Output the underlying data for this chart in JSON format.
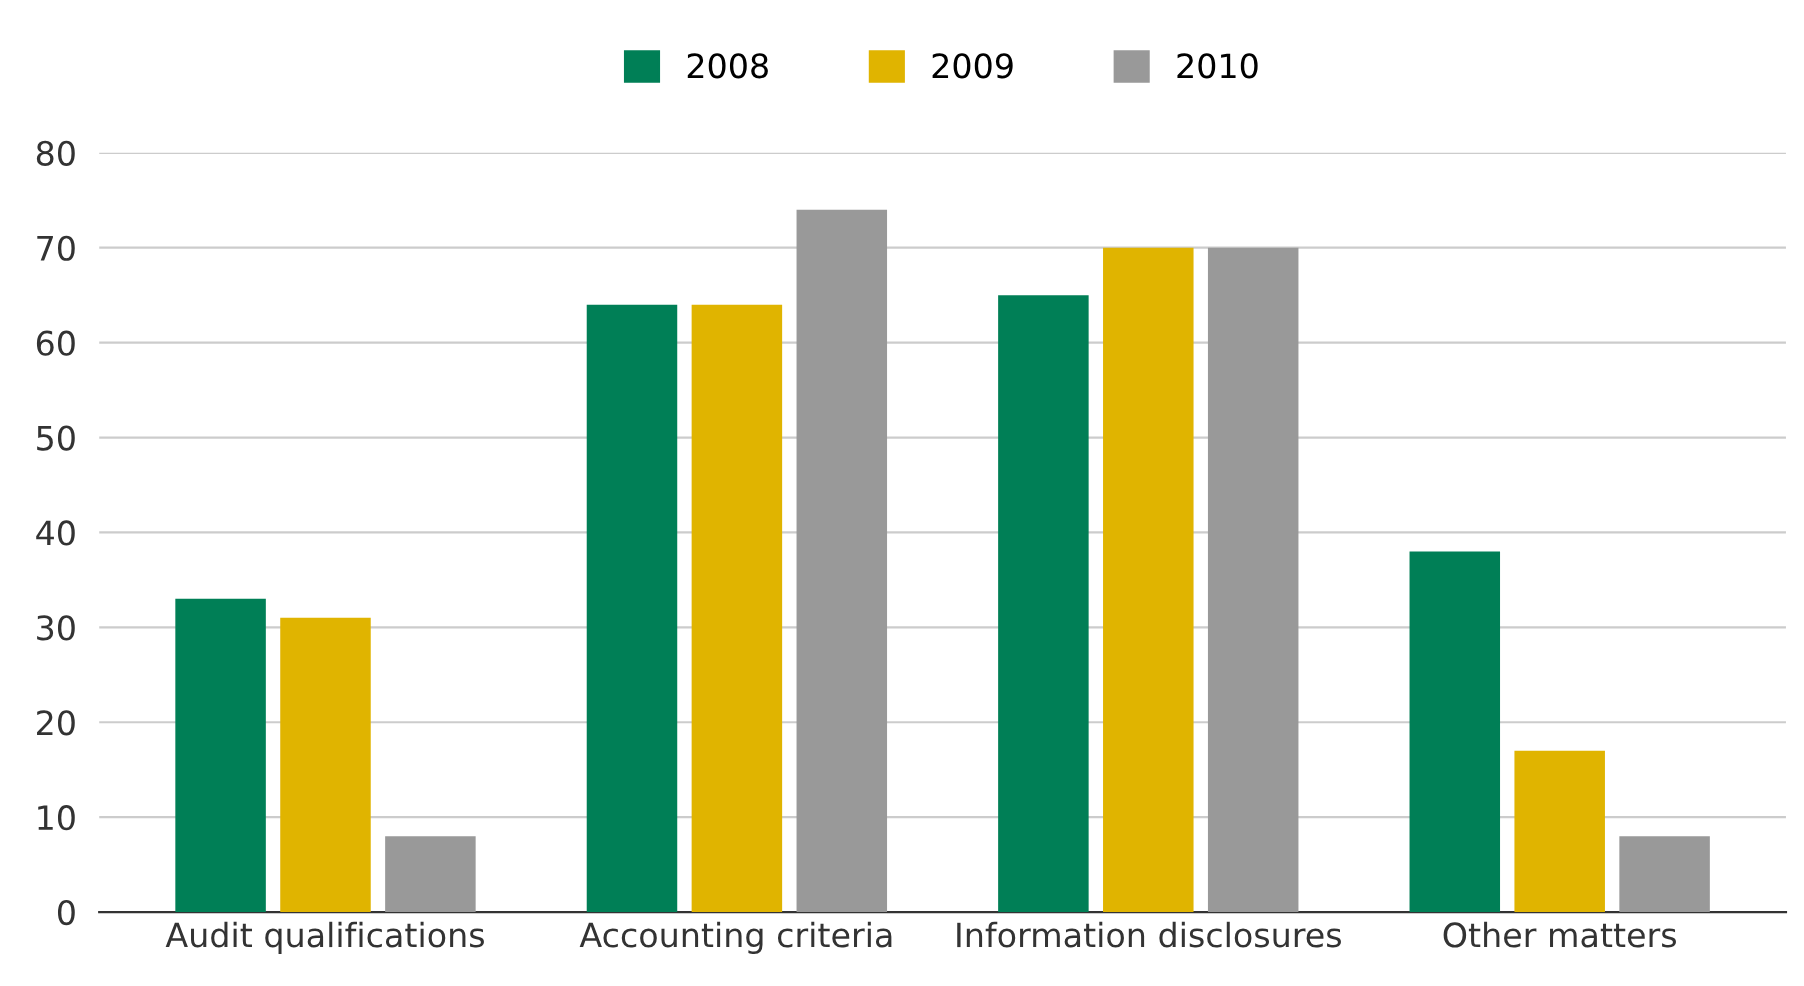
{
  "chart_data": {
    "type": "bar",
    "categories": [
      "Audit qualifications",
      "Accounting criteria",
      "Information disclosures",
      "Other matters"
    ],
    "series": [
      {
        "name": "2008",
        "color": "#007f56",
        "values": [
          33,
          64,
          65,
          38
        ]
      },
      {
        "name": "2009",
        "color": "#e0b400",
        "values": [
          31,
          64,
          70,
          17
        ]
      },
      {
        "name": "2010",
        "color": "#999999",
        "values": [
          8,
          74,
          70,
          8
        ]
      }
    ],
    "ylim": [
      0,
      80
    ],
    "yticks": [
      0,
      10,
      20,
      30,
      40,
      50,
      60,
      70,
      80
    ],
    "grid": "y",
    "legend": "top"
  }
}
